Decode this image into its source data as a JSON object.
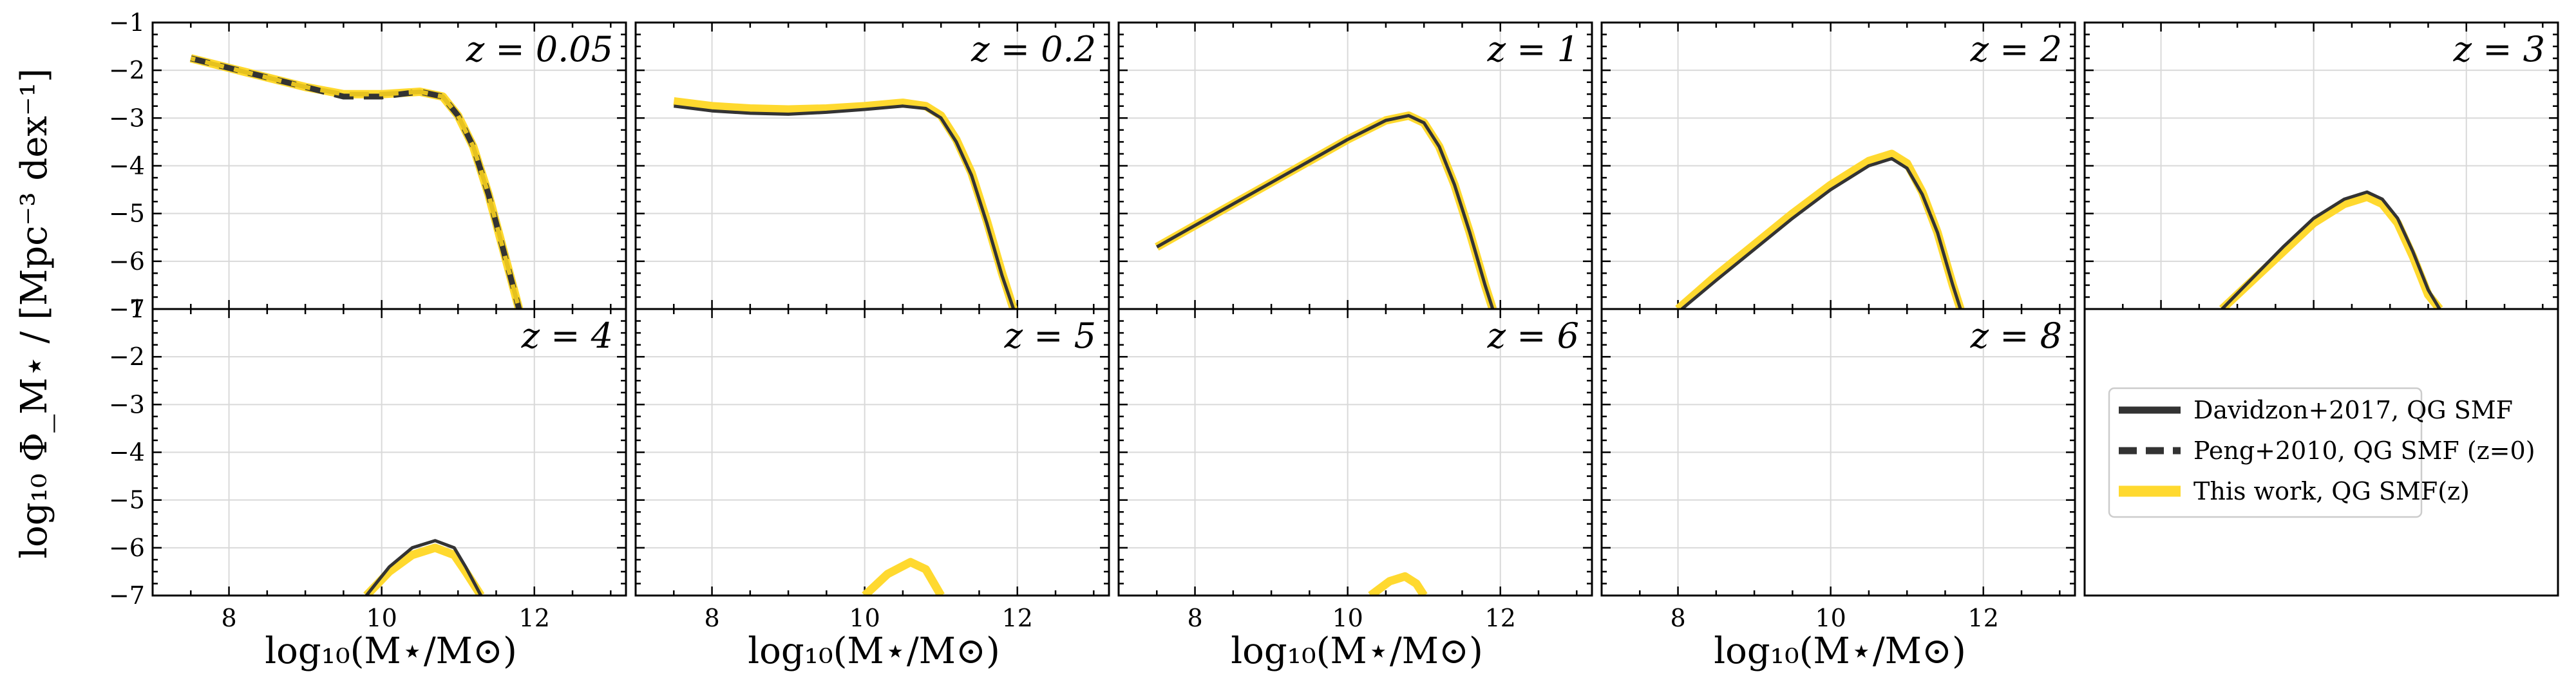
{
  "figure": {
    "ylabel": "log₁₀ Φ_M⋆ / [Mpc⁻³ dex⁻¹]",
    "xlabel": "log₁₀(M⋆/M⊙)",
    "legend": [
      {
        "label": "Davidzon+2017, QG SMF",
        "color": "#333333",
        "style": "solid"
      },
      {
        "label": "Peng+2010, QG SMF (z=0)",
        "color": "#333333",
        "style": "dashed"
      },
      {
        "label": "This work, QG SMF(z)",
        "color": "#ffd92f",
        "style": "solid"
      }
    ]
  },
  "chart_data": [
    {
      "type": "line",
      "panel_label": "z = 0.05",
      "xlim": [
        7,
        13.2
      ],
      "ylim": [
        -7,
        -1
      ],
      "xticks": [
        8,
        10,
        12
      ],
      "yticks": [
        -1,
        -2,
        -3,
        -4,
        -5,
        -6,
        -7
      ],
      "grid": true,
      "series": [
        {
          "name": "Peng+2010, QG SMF (z=0)",
          "color": "#333333",
          "style": "dashed",
          "x": [
            7.5,
            8.0,
            8.5,
            9.0,
            9.5,
            10.0,
            10.5,
            10.8,
            11.0,
            11.2,
            11.4,
            11.6,
            11.8
          ],
          "y": [
            -1.75,
            -1.95,
            -2.15,
            -2.35,
            -2.55,
            -2.55,
            -2.45,
            -2.55,
            -2.95,
            -3.6,
            -4.6,
            -5.8,
            -7.0
          ]
        },
        {
          "name": "This work, QG SMF(z)",
          "color": "#ffd92f",
          "style": "solid",
          "x": [
            7.5,
            8.0,
            8.5,
            9.0,
            9.5,
            10.0,
            10.5,
            10.8,
            11.0,
            11.2,
            11.4,
            11.6,
            11.8
          ],
          "y": [
            -1.75,
            -1.95,
            -2.15,
            -2.35,
            -2.5,
            -2.5,
            -2.45,
            -2.55,
            -2.95,
            -3.6,
            -4.6,
            -5.8,
            -7.0
          ]
        }
      ]
    },
    {
      "type": "line",
      "panel_label": "z = 0.2",
      "xlim": [
        7,
        13.2
      ],
      "ylim": [
        -7,
        -1
      ],
      "xticks": [
        8,
        10,
        12
      ],
      "yticks": [
        -1,
        -2,
        -3,
        -4,
        -5,
        -6,
        -7
      ],
      "grid": true,
      "series": [
        {
          "name": "Davidzon+2017, QG SMF",
          "color": "#333333",
          "style": "solid",
          "x": [
            7.5,
            8.0,
            8.5,
            9.0,
            9.5,
            10.0,
            10.5,
            10.8,
            11.0,
            11.2,
            11.4,
            11.6,
            11.8,
            11.95
          ],
          "y": [
            -2.75,
            -2.85,
            -2.9,
            -2.92,
            -2.88,
            -2.82,
            -2.75,
            -2.8,
            -3.0,
            -3.5,
            -4.2,
            -5.2,
            -6.3,
            -7.0
          ]
        },
        {
          "name": "This work, QG SMF(z)",
          "color": "#ffd92f",
          "style": "solid",
          "x": [
            7.5,
            8.0,
            8.5,
            9.0,
            9.5,
            10.0,
            10.5,
            10.8,
            11.0,
            11.2,
            11.4,
            11.6,
            11.8,
            11.95
          ],
          "y": [
            -2.65,
            -2.75,
            -2.8,
            -2.82,
            -2.8,
            -2.75,
            -2.68,
            -2.75,
            -2.95,
            -3.45,
            -4.15,
            -5.15,
            -6.25,
            -7.0
          ]
        }
      ]
    },
    {
      "type": "line",
      "panel_label": "z = 1",
      "xlim": [
        7,
        13.2
      ],
      "ylim": [
        -7,
        -1
      ],
      "xticks": [
        8,
        10,
        12
      ],
      "yticks": [
        -1,
        -2,
        -3,
        -4,
        -5,
        -6,
        -7
      ],
      "grid": true,
      "series": [
        {
          "name": "Davidzon+2017, QG SMF",
          "color": "#333333",
          "style": "solid",
          "x": [
            7.5,
            8.0,
            8.5,
            9.0,
            9.5,
            10.0,
            10.5,
            10.8,
            11.0,
            11.2,
            11.4,
            11.6,
            11.8,
            11.9
          ],
          "y": [
            -5.7,
            -5.25,
            -4.8,
            -4.35,
            -3.9,
            -3.45,
            -3.05,
            -2.95,
            -3.1,
            -3.6,
            -4.4,
            -5.4,
            -6.5,
            -7.0
          ]
        },
        {
          "name": "This work, QG SMF(z)",
          "color": "#ffd92f",
          "style": "solid",
          "x": [
            7.5,
            8.0,
            8.5,
            9.0,
            9.5,
            10.0,
            10.5,
            10.8,
            11.0,
            11.2,
            11.4,
            11.6,
            11.8,
            11.9
          ],
          "y": [
            -5.7,
            -5.25,
            -4.8,
            -4.35,
            -3.9,
            -3.45,
            -3.05,
            -2.95,
            -3.1,
            -3.6,
            -4.4,
            -5.4,
            -6.5,
            -7.0
          ]
        }
      ]
    },
    {
      "type": "line",
      "panel_label": "z = 2",
      "xlim": [
        7,
        13.2
      ],
      "ylim": [
        -7,
        -1
      ],
      "xticks": [
        8,
        10,
        12
      ],
      "yticks": [
        -1,
        -2,
        -3,
        -4,
        -5,
        -6,
        -7
      ],
      "grid": true,
      "series": [
        {
          "name": "Davidzon+2017, QG SMF",
          "color": "#333333",
          "style": "solid",
          "x": [
            8.05,
            8.5,
            9.0,
            9.5,
            10.0,
            10.5,
            10.8,
            11.0,
            11.2,
            11.4,
            11.6,
            11.7
          ],
          "y": [
            -7.0,
            -6.4,
            -5.75,
            -5.1,
            -4.5,
            -4.0,
            -3.85,
            -4.05,
            -4.6,
            -5.4,
            -6.5,
            -7.0
          ]
        },
        {
          "name": "This work, QG SMF(z)",
          "color": "#ffd92f",
          "style": "solid",
          "x": [
            8.0,
            8.5,
            9.0,
            9.5,
            10.0,
            10.5,
            10.8,
            11.0,
            11.2,
            11.4,
            11.6,
            11.7
          ],
          "y": [
            -7.0,
            -6.3,
            -5.65,
            -5.0,
            -4.4,
            -3.9,
            -3.75,
            -3.95,
            -4.55,
            -5.4,
            -6.5,
            -7.0
          ]
        }
      ]
    },
    {
      "type": "line",
      "panel_label": "z = 3",
      "xlim": [
        7,
        13.2
      ],
      "ylim": [
        -7,
        -1
      ],
      "xticks": [
        8,
        10,
        12
      ],
      "yticks": [
        -1,
        -2,
        -3,
        -4,
        -5,
        -6,
        -7
      ],
      "grid": true,
      "series": [
        {
          "name": "Davidzon+2017, QG SMF",
          "color": "#333333",
          "style": "solid",
          "x": [
            8.8,
            9.2,
            9.6,
            10.0,
            10.4,
            10.7,
            10.9,
            11.1,
            11.3,
            11.5,
            11.65
          ],
          "y": [
            -7.0,
            -6.35,
            -5.7,
            -5.1,
            -4.7,
            -4.55,
            -4.7,
            -5.1,
            -5.8,
            -6.6,
            -7.0
          ]
        },
        {
          "name": "This work, QG SMF(z)",
          "color": "#ffd92f",
          "style": "solid",
          "x": [
            8.8,
            9.2,
            9.6,
            10.0,
            10.4,
            10.7,
            10.9,
            11.1,
            11.3,
            11.5,
            11.65
          ],
          "y": [
            -7.0,
            -6.4,
            -5.8,
            -5.2,
            -4.8,
            -4.65,
            -4.8,
            -5.2,
            -5.9,
            -6.7,
            -7.0
          ]
        }
      ]
    },
    {
      "type": "line",
      "panel_label": "z = 4",
      "xlim": [
        7,
        13.2
      ],
      "ylim": [
        -7,
        -1
      ],
      "xticks": [
        8,
        10,
        12
      ],
      "yticks": [
        -1,
        -2,
        -3,
        -4,
        -5,
        -6,
        -7
      ],
      "grid": true,
      "series": [
        {
          "name": "Davidzon+2017, QG SMF",
          "color": "#333333",
          "style": "solid",
          "x": [
            9.8,
            10.1,
            10.4,
            10.7,
            10.95,
            11.1,
            11.3
          ],
          "y": [
            -7.0,
            -6.4,
            -6.0,
            -5.85,
            -6.0,
            -6.4,
            -7.0
          ]
        },
        {
          "name": "This work, QG SMF(z)",
          "color": "#ffd92f",
          "style": "solid",
          "x": [
            9.8,
            10.1,
            10.4,
            10.7,
            10.95,
            11.1,
            11.3
          ],
          "y": [
            -7.0,
            -6.5,
            -6.15,
            -6.0,
            -6.15,
            -6.5,
            -7.0
          ]
        }
      ]
    },
    {
      "type": "line",
      "panel_label": "z = 5",
      "xlim": [
        7,
        13.2
      ],
      "ylim": [
        -7,
        -1
      ],
      "xticks": [
        8,
        10,
        12
      ],
      "yticks": [
        -1,
        -2,
        -3,
        -4,
        -5,
        -6,
        -7
      ],
      "grid": true,
      "series": [
        {
          "name": "This work, QG SMF(z)",
          "color": "#ffd92f",
          "style": "solid",
          "x": [
            10.0,
            10.3,
            10.6,
            10.8,
            11.0
          ],
          "y": [
            -7.0,
            -6.55,
            -6.3,
            -6.45,
            -7.0
          ]
        }
      ]
    },
    {
      "type": "line",
      "panel_label": "z = 6",
      "xlim": [
        7,
        13.2
      ],
      "ylim": [
        -7,
        -1
      ],
      "xticks": [
        8,
        10,
        12
      ],
      "yticks": [
        -1,
        -2,
        -3,
        -4,
        -5,
        -6,
        -7
      ],
      "grid": true,
      "series": [
        {
          "name": "This work, QG SMF(z)",
          "color": "#ffd92f",
          "style": "solid",
          "x": [
            10.3,
            10.55,
            10.75,
            10.9,
            11.0
          ],
          "y": [
            -7.0,
            -6.7,
            -6.6,
            -6.75,
            -7.0
          ]
        }
      ]
    },
    {
      "type": "line",
      "panel_label": "z = 8",
      "xlim": [
        7,
        13.2
      ],
      "ylim": [
        -7,
        -1
      ],
      "xticks": [
        8,
        10,
        12
      ],
      "yticks": [
        -1,
        -2,
        -3,
        -4,
        -5,
        -6,
        -7
      ],
      "grid": true,
      "series": []
    }
  ]
}
